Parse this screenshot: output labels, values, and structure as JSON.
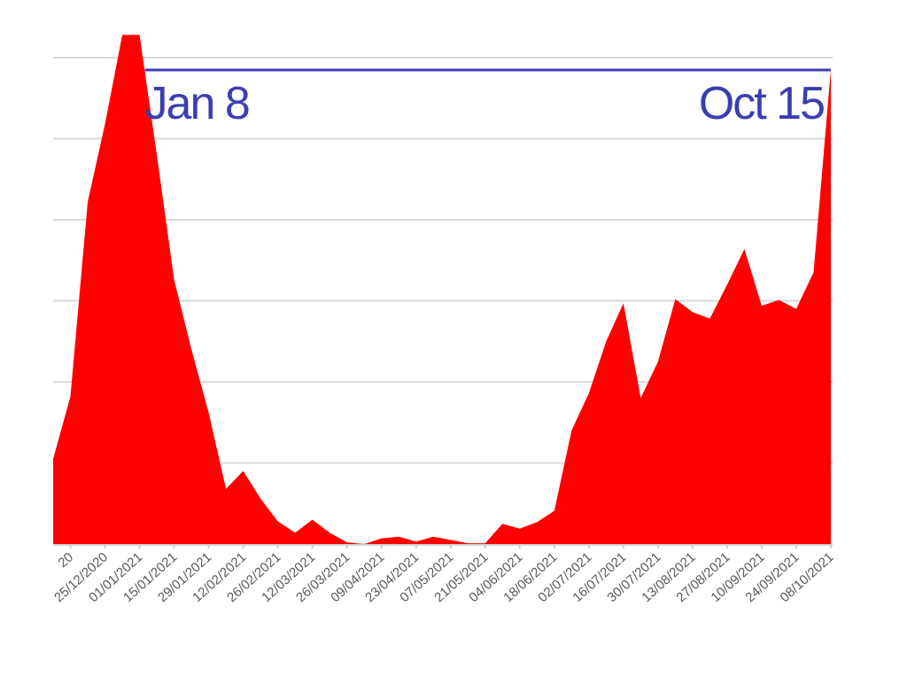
{
  "chart_data": {
    "type": "area",
    "series": [
      {
        "color": "#ff0000",
        "x": [
          "04/12/2020",
          "11/12/2020",
          "18/12/2020",
          "25/12/2020",
          "01/01/2021",
          "08/01/2021",
          "15/01/2021",
          "22/01/2021",
          "29/01/2021",
          "05/02/2021",
          "12/02/2021",
          "19/02/2021",
          "26/02/2021",
          "05/03/2021",
          "12/03/2021",
          "19/03/2021",
          "26/03/2021",
          "02/04/2021",
          "09/04/2021",
          "16/04/2021",
          "23/04/2021",
          "30/04/2021",
          "07/05/2021",
          "14/05/2021",
          "21/05/2021",
          "28/05/2021",
          "04/06/2021",
          "11/06/2021",
          "18/06/2021",
          "25/06/2021",
          "02/07/2021",
          "09/07/2021",
          "16/07/2021",
          "23/07/2021",
          "30/07/2021",
          "06/08/2021",
          "13/08/2021",
          "20/08/2021",
          "27/08/2021",
          "03/09/2021",
          "10/09/2021",
          "17/09/2021",
          "24/09/2021",
          "01/10/2021",
          "08/10/2021",
          "15/10/2021"
        ],
        "y": [
          105,
          182,
          422,
          518,
          628,
          628,
          480,
          326,
          240,
          162,
          68,
          90,
          56,
          28,
          14,
          30,
          14,
          2,
          0,
          7,
          9,
          3,
          9,
          5,
          1,
          1,
          25,
          19,
          27,
          41,
          140,
          186,
          250,
          297,
          180,
          225,
          302,
          286,
          278,
          320,
          364,
          294,
          301,
          290,
          335,
          585
        ]
      }
    ],
    "ylim": [
      0,
      600
    ],
    "grid": true,
    "x_tick_labels": [
      "20",
      "25/12/2020",
      "01/01/2021",
      "15/01/2021",
      "29/01/2021",
      "12/02/2021",
      "26/02/2021",
      "12/03/2021",
      "26/03/2021",
      "09/04/2021",
      "23/04/2021",
      "07/05/2021",
      "21/05/2021",
      "04/06/2021",
      "18/06/2021",
      "02/07/2021",
      "16/07/2021",
      "30/07/2021",
      "13/08/2021",
      "27/08/2021",
      "10/09/2021",
      "24/09/2021",
      "08/10/2021"
    ],
    "annotations": [
      {
        "text": "Jan 8",
        "x": "08/01/2021",
        "color": "#3d3db0"
      },
      {
        "text": "Oct 15",
        "x": "15/10/2021",
        "color": "#3d3db0"
      }
    ],
    "reference_line": {
      "from": "08/01/2021",
      "to": "15/10/2021",
      "color": "#3d3db0"
    }
  }
}
